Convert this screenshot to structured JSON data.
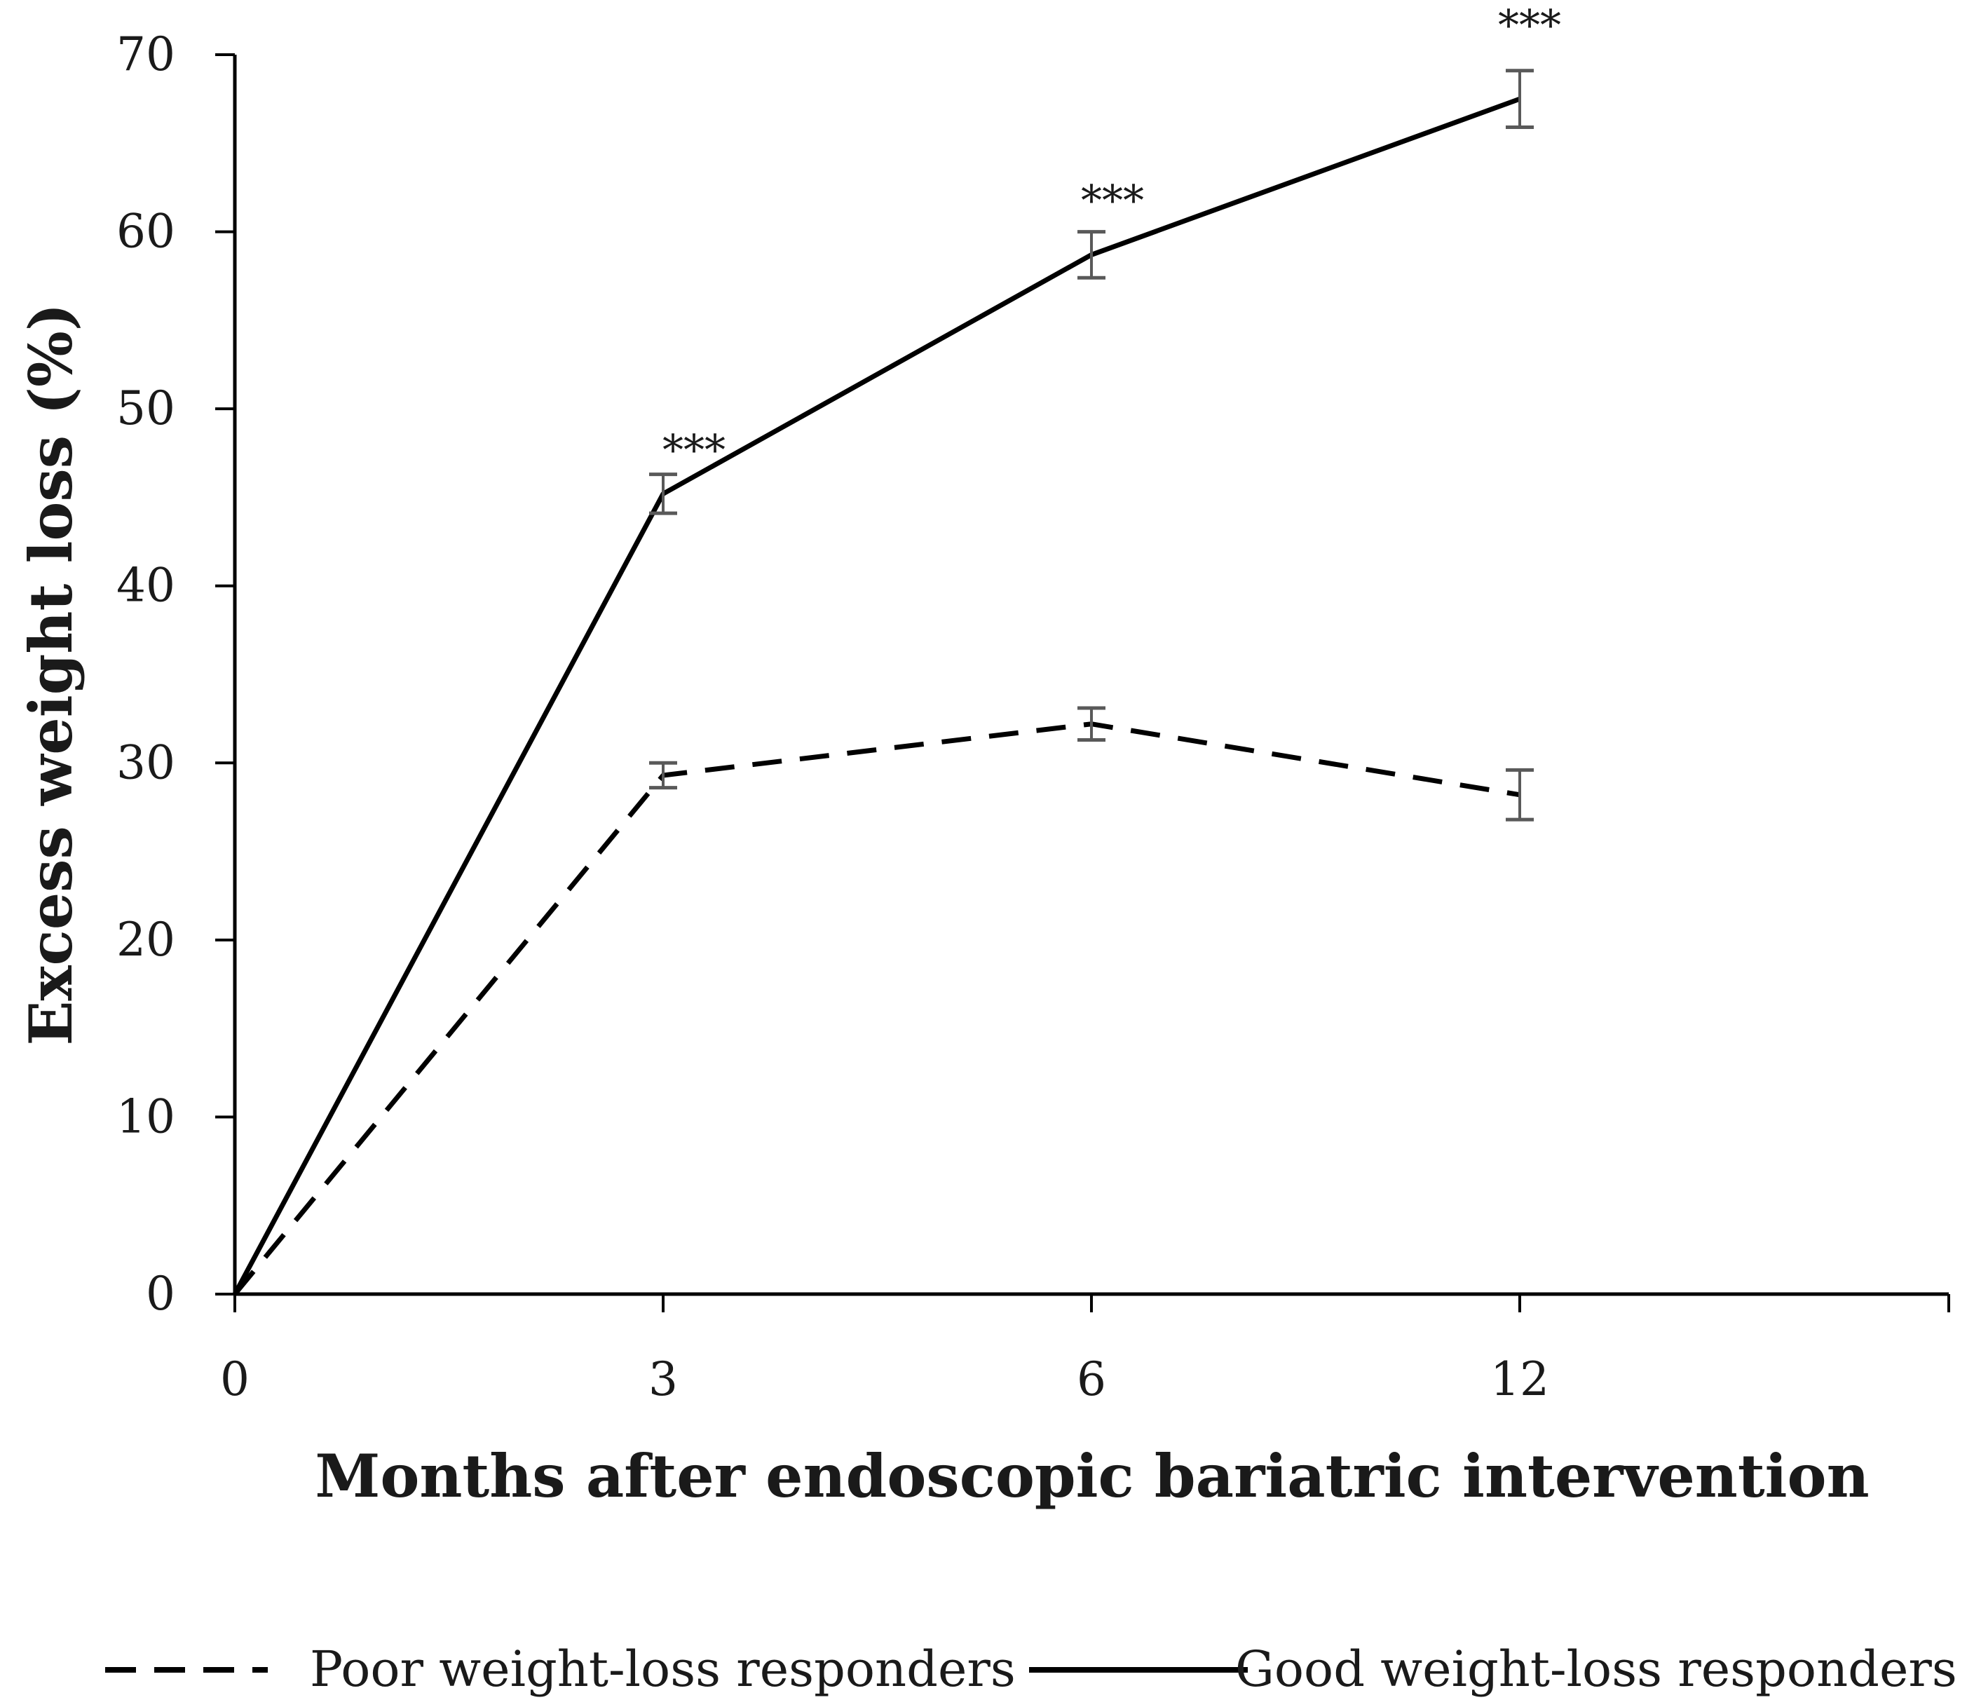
{
  "chart_data": {
    "type": "line",
    "title": "",
    "xlabel": "Months after endoscopic bariatric intervention",
    "ylabel": "Excess weight loss (%)",
    "categories": [
      "0",
      "3",
      "6",
      "12"
    ],
    "ylim": [
      0,
      70
    ],
    "yticks": [
      "0",
      "10",
      "20",
      "30",
      "40",
      "50",
      "60",
      "70"
    ],
    "grid": false,
    "legend_position": "bottom",
    "series": [
      {
        "name": "Poor weight-loss responders",
        "style": "dashed",
        "color": "#000000",
        "values": [
          0,
          29.3,
          32.2,
          28.2
        ],
        "error": [
          null,
          0.7,
          0.9,
          1.4
        ]
      },
      {
        "name": "Good weight-loss responders",
        "style": "solid",
        "color": "#000000",
        "values": [
          0,
          45.2,
          58.7,
          67.5
        ],
        "error": [
          null,
          1.1,
          1.3,
          1.6
        ]
      }
    ],
    "annotations": [
      {
        "category": "3",
        "text": "***",
        "series": "Good weight-loss responders"
      },
      {
        "category": "6",
        "text": "***",
        "series": "Good weight-loss responders"
      },
      {
        "category": "12",
        "text": "***",
        "series": "Good weight-loss responders"
      }
    ],
    "errorbar_color": "#595959"
  }
}
